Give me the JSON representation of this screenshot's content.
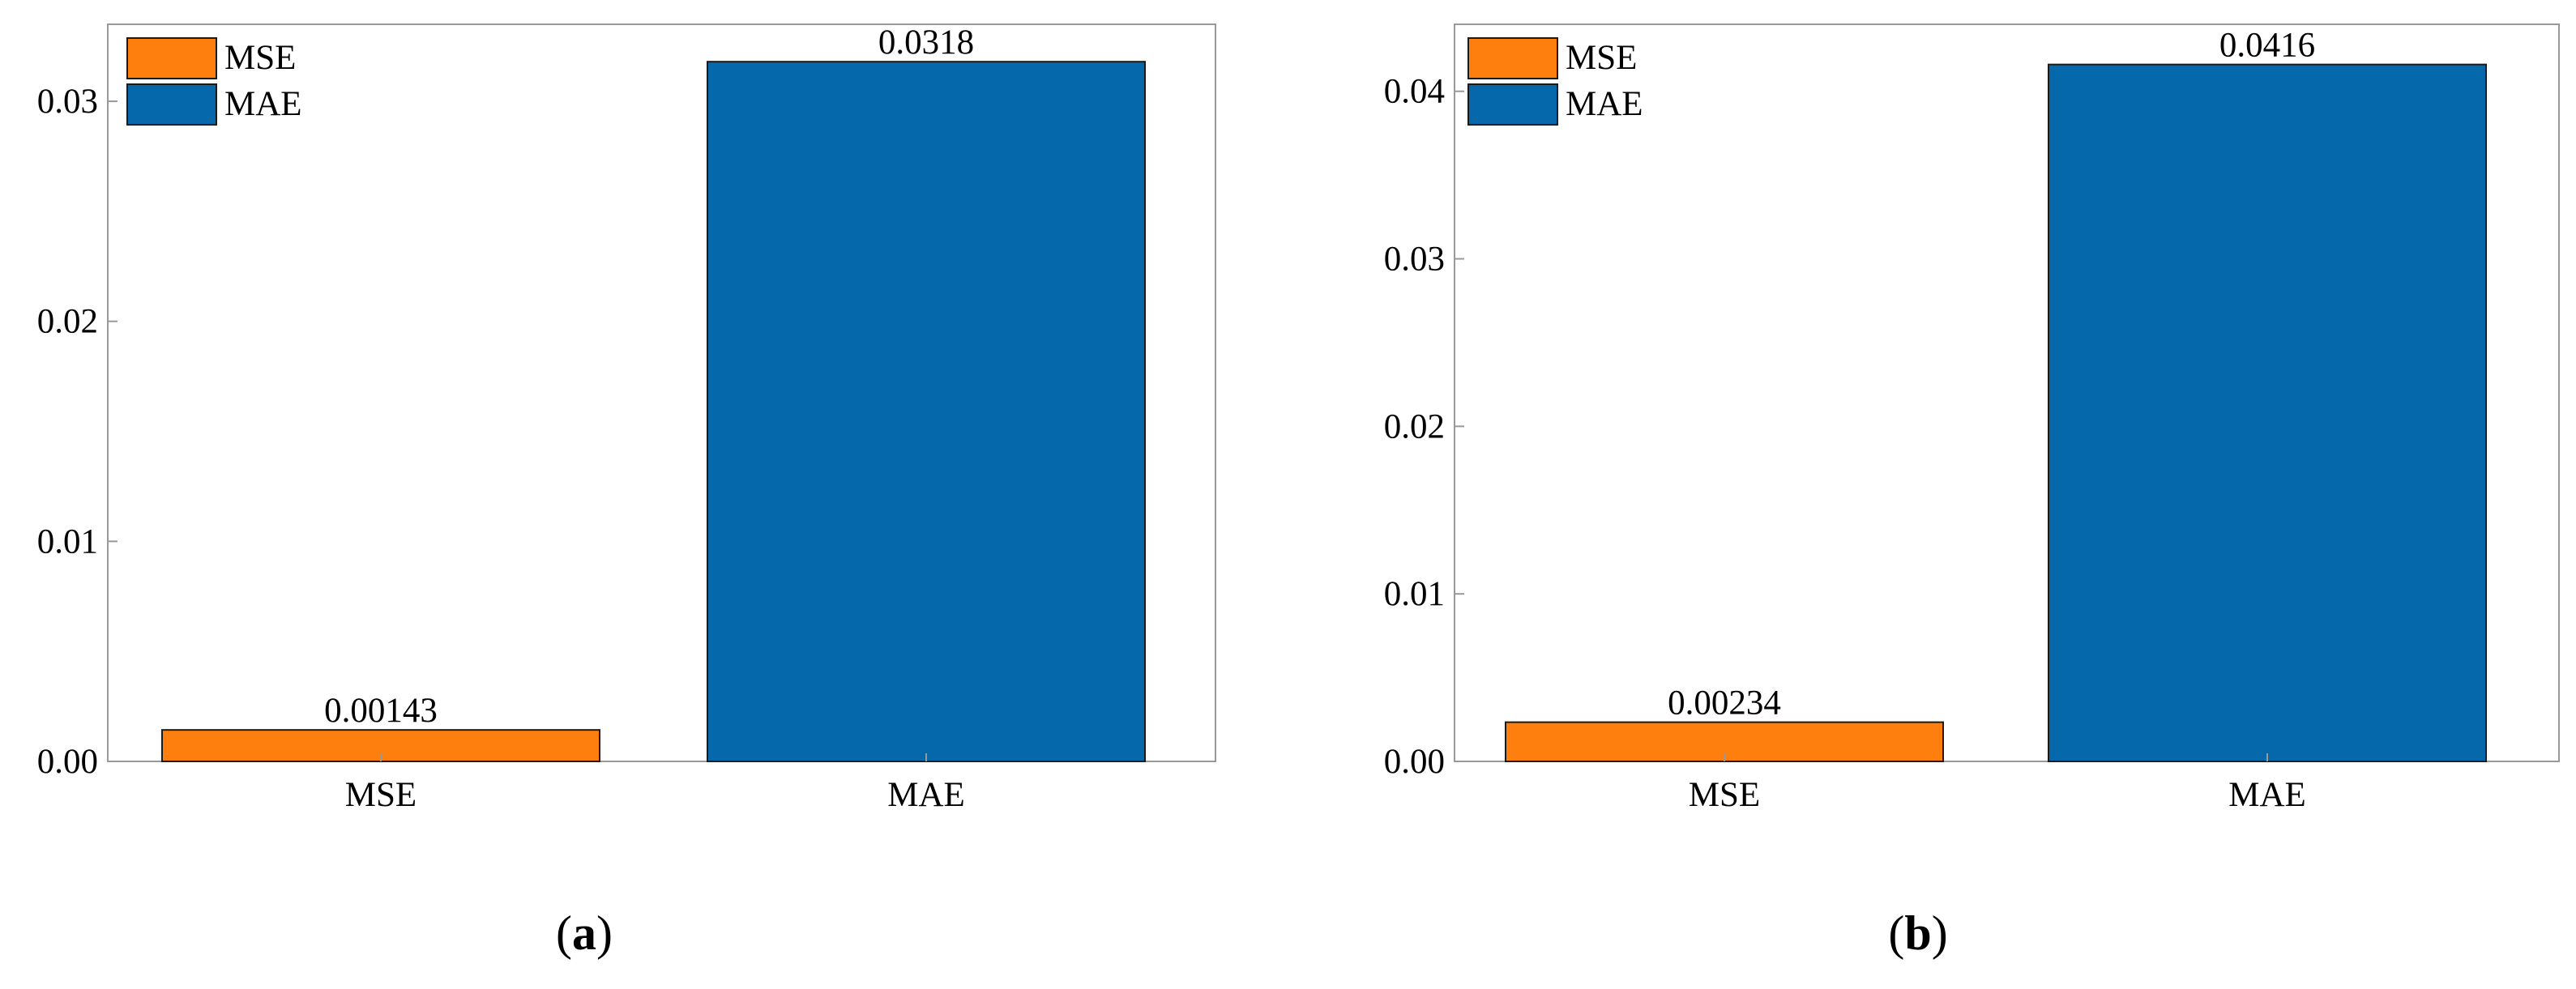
{
  "colors": {
    "MSE": "#FF7F0E",
    "MAE": "#0468AB",
    "axis": "#999999"
  },
  "chart_data": [
    {
      "type": "bar",
      "panel": "(a)",
      "categories": [
        "MSE",
        "MAE"
      ],
      "values": [
        0.00143,
        0.0318
      ],
      "data_labels": [
        "0.00143",
        "0.0318"
      ],
      "ylim": [
        0,
        0.0335
      ],
      "yticks": [
        0.0,
        0.01,
        0.02,
        0.03
      ],
      "ytick_labels": [
        "0.00",
        "0.01",
        "0.02",
        "0.03"
      ],
      "legend": [
        "MSE",
        "MAE"
      ],
      "legend_position": "top-left",
      "grid": false,
      "title": "",
      "xlabel": "",
      "ylabel": ""
    },
    {
      "type": "bar",
      "panel": "(b)",
      "categories": [
        "MSE",
        "MAE"
      ],
      "values": [
        0.00234,
        0.0416
      ],
      "data_labels": [
        "0.00234",
        "0.0416"
      ],
      "ylim": [
        0,
        0.044
      ],
      "yticks": [
        0.0,
        0.01,
        0.02,
        0.03,
        0.04
      ],
      "ytick_labels": [
        "0.00",
        "0.01",
        "0.02",
        "0.03",
        "0.04"
      ],
      "legend": [
        "MSE",
        "MAE"
      ],
      "legend_position": "top-left",
      "grid": false,
      "title": "",
      "xlabel": "",
      "ylabel": ""
    }
  ],
  "captions": [
    {
      "open": "(",
      "letter": "a",
      "close": ")"
    },
    {
      "open": "(",
      "letter": "b",
      "close": ")"
    }
  ]
}
